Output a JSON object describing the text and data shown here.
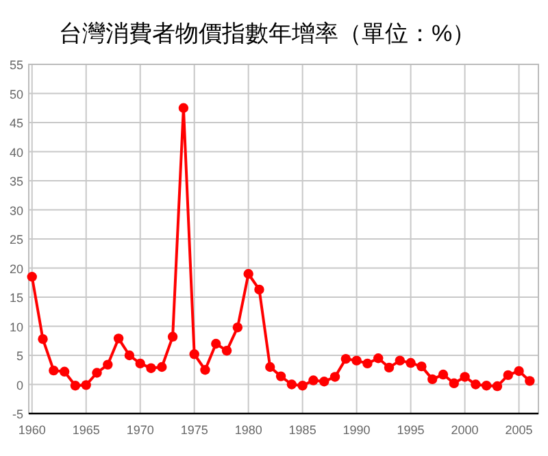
{
  "chart_data": {
    "type": "line",
    "title": "台灣消費者物價指數年增率（單位：%）",
    "x": [
      1960,
      1961,
      1962,
      1963,
      1964,
      1965,
      1966,
      1967,
      1968,
      1969,
      1970,
      1971,
      1972,
      1973,
      1974,
      1975,
      1976,
      1977,
      1978,
      1979,
      1980,
      1981,
      1982,
      1983,
      1984,
      1985,
      1986,
      1987,
      1988,
      1989,
      1990,
      1991,
      1992,
      1993,
      1994,
      1995,
      1996,
      1997,
      1998,
      1999,
      2000,
      2001,
      2002,
      2003,
      2004,
      2005,
      2006
    ],
    "series": [
      {
        "color": "#ff0000",
        "values": [
          18.5,
          7.8,
          2.4,
          2.2,
          -0.2,
          -0.1,
          2.0,
          3.4,
          7.9,
          5.0,
          3.6,
          2.8,
          3.0,
          8.2,
          47.5,
          5.2,
          2.5,
          7.0,
          5.8,
          9.8,
          19.0,
          16.3,
          3.0,
          1.4,
          0.0,
          -0.2,
          0.7,
          0.5,
          1.3,
          4.4,
          4.1,
          3.6,
          4.5,
          2.9,
          4.1,
          3.7,
          3.1,
          0.9,
          1.7,
          0.2,
          1.3,
          0.0,
          -0.2,
          -0.3,
          1.6,
          2.3,
          0.6
        ]
      }
    ],
    "xlim": [
      1959.7,
      2006.8
    ],
    "xticks": [
      1960,
      1965,
      1970,
      1975,
      1980,
      1985,
      1990,
      1995,
      2000,
      2005
    ],
    "ylim": [
      -5,
      55
    ],
    "yticks": [
      -5,
      0,
      5,
      10,
      15,
      20,
      25,
      30,
      35,
      40,
      45,
      50,
      55
    ],
    "grid": true,
    "marker": "circle",
    "line_style": "solid"
  }
}
